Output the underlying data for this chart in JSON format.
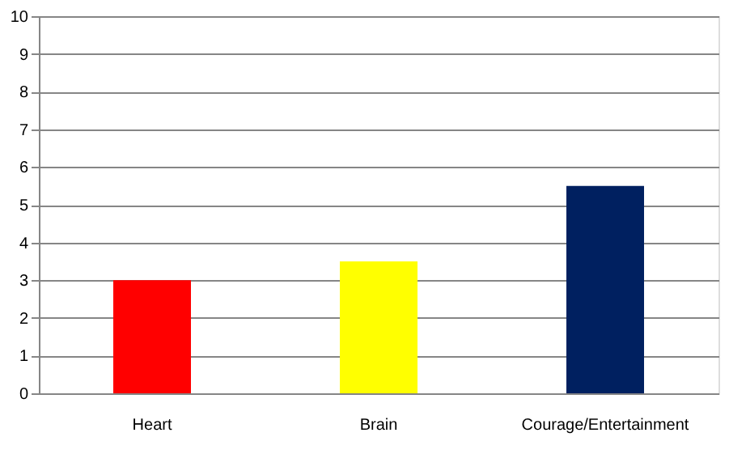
{
  "chart_data": {
    "type": "bar",
    "categories": [
      "Heart",
      "Brain",
      "Courage/Entertainment"
    ],
    "values": [
      3,
      3.5,
      5.5
    ],
    "colors": [
      "#ff0000",
      "#ffff00",
      "#002060"
    ],
    "ylim": [
      0,
      10
    ],
    "yticks": [
      0,
      1,
      2,
      3,
      4,
      5,
      6,
      7,
      8,
      9,
      10
    ],
    "grid": "y"
  }
}
